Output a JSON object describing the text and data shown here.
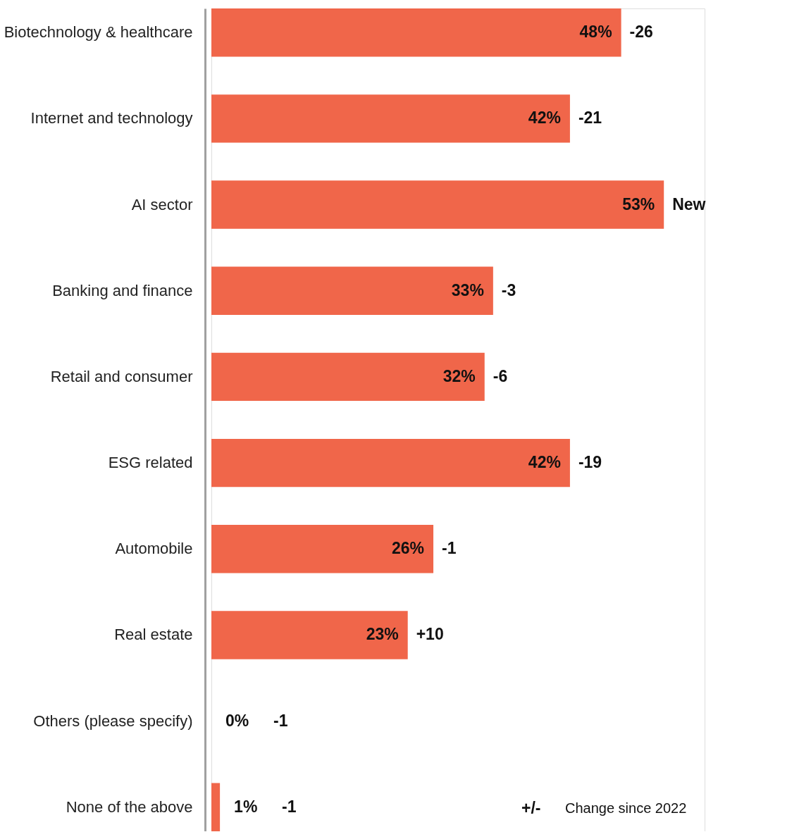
{
  "chart_data": {
    "type": "bar",
    "orientation": "horizontal",
    "categories": [
      "Biotechnology & healthcare",
      "Internet and technology",
      "AI sector",
      "Banking and finance",
      "Retail and consumer",
      "ESG related",
      "Automobile",
      "Real estate",
      "Others (please specify)",
      "None of the above"
    ],
    "values": [
      48,
      42,
      53,
      33,
      32,
      42,
      26,
      23,
      0,
      1
    ],
    "color": "#f0664a",
    "value_labels": [
      "48%",
      "42%",
      "53%",
      "33%",
      "32%",
      "42%",
      "26%",
      "23%",
      "0%",
      "1%"
    ],
    "annotations": [
      "-26",
      "-21",
      "New",
      "-3",
      "-6",
      "-19",
      "-1",
      "+10",
      "-1",
      "-1",
      "+/-",
      "Change since 2022"
    ],
    "grid": false
  }
}
